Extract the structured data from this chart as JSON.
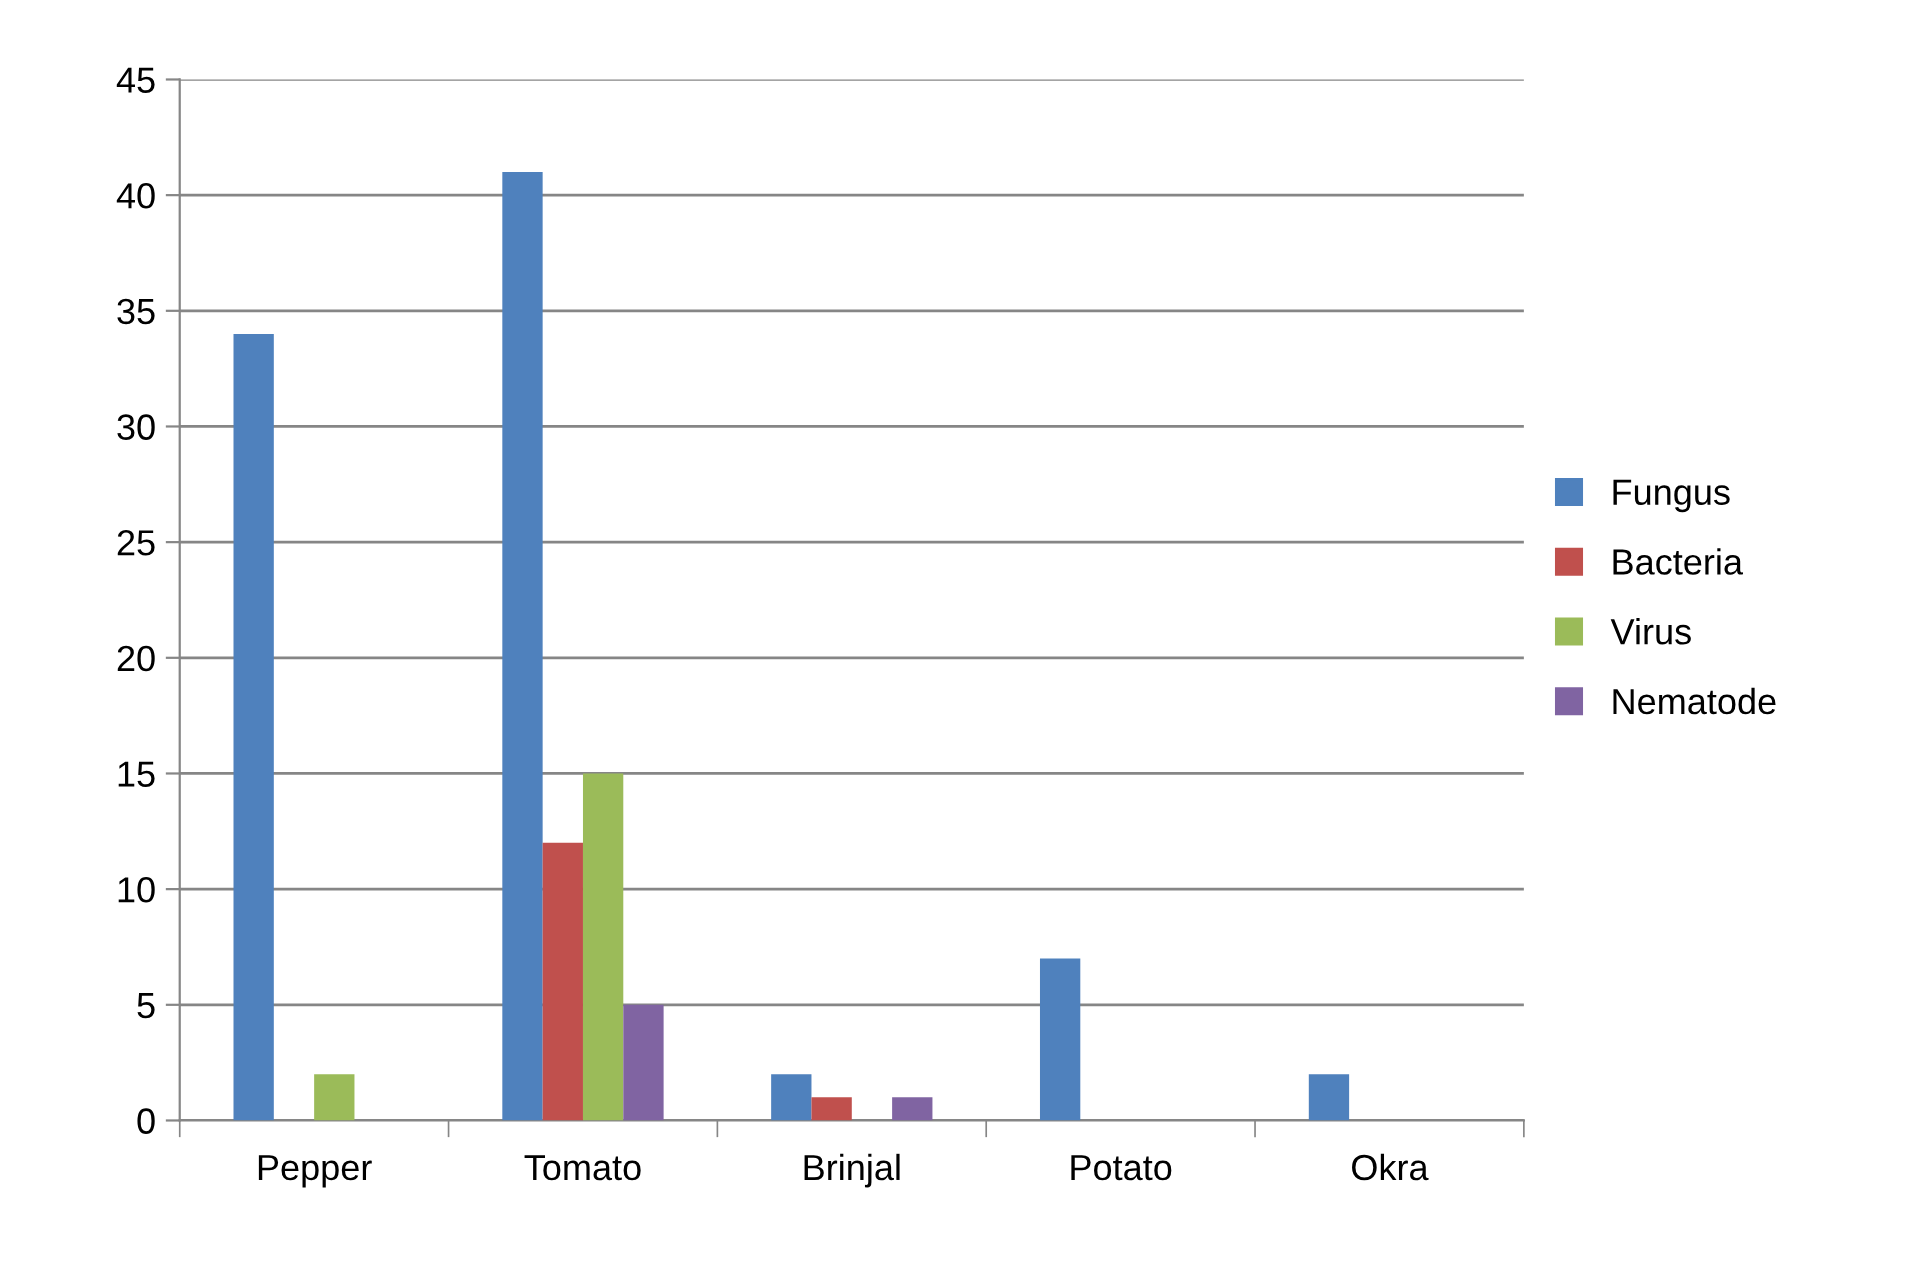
{
  "chart_data": {
    "type": "bar",
    "categories": [
      "Pepper",
      "Tomato",
      "Brinjal",
      "Potato",
      "Okra"
    ],
    "series": [
      {
        "name": "Fungus",
        "color": "#4f81bd",
        "values": [
          34,
          41,
          2,
          7,
          2
        ]
      },
      {
        "name": "Bacteria",
        "color": "#c0504d",
        "values": [
          0,
          12,
          1,
          0,
          0
        ]
      },
      {
        "name": "Virus",
        "color": "#9bbb59",
        "values": [
          2,
          15,
          0,
          0,
          0
        ]
      },
      {
        "name": "Nematode",
        "color": "#8064a2",
        "values": [
          0,
          5,
          1,
          0,
          0
        ]
      }
    ],
    "ylim": [
      0,
      45
    ],
    "yticks": [
      0,
      5,
      10,
      15,
      20,
      25,
      30,
      35,
      40,
      45
    ],
    "grid": "y",
    "legend": "right"
  }
}
